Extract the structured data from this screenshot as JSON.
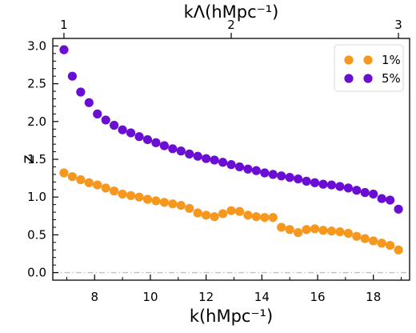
{
  "chart_data": {
    "type": "scatter",
    "xlabel": "k(hMpc⁻¹)",
    "ylabel": "z",
    "top_xlabel": "kΛ(hMpc⁻¹)",
    "xlim": [
      6.5,
      19.3
    ],
    "ylim": [
      -0.1,
      3.1
    ],
    "x_ticks": [
      8,
      10,
      12,
      14,
      16,
      18
    ],
    "y_ticks": [
      0.0,
      0.5,
      1.0,
      1.5,
      2.0,
      2.5,
      3.0
    ],
    "x_tick_labels": [
      "8",
      "10",
      "12",
      "14",
      "16",
      "18"
    ],
    "y_tick_labels": [
      "0.0",
      "0.5",
      "1.0",
      "1.5",
      "2.0",
      "2.5",
      "3.0"
    ],
    "top_ticks": [
      {
        "k": 6.9,
        "label": "1"
      },
      {
        "k": 12.9,
        "label": "2"
      },
      {
        "k": 18.9,
        "label": "3"
      }
    ],
    "reference_line": {
      "y": 0.0,
      "style": "dash-dot",
      "color": "#c0c0c0"
    },
    "legend": {
      "position": "top-right"
    },
    "grid": false,
    "x": [
      6.9,
      7.2,
      7.5,
      7.8,
      8.1,
      8.4,
      8.7,
      9.0,
      9.3,
      9.6,
      9.9,
      10.2,
      10.5,
      10.8,
      11.1,
      11.4,
      11.7,
      12.0,
      12.3,
      12.6,
      12.9,
      13.2,
      13.5,
      13.8,
      14.1,
      14.4,
      14.7,
      15.0,
      15.3,
      15.6,
      15.9,
      16.2,
      16.5,
      16.8,
      17.1,
      17.4,
      17.7,
      18.0,
      18.3,
      18.6,
      18.9
    ],
    "series": [
      {
        "name": "1%",
        "color": "#f7981e",
        "values": [
          1.32,
          1.27,
          1.23,
          1.19,
          1.16,
          1.12,
          1.08,
          1.04,
          1.02,
          1.0,
          0.97,
          0.95,
          0.93,
          0.91,
          0.89,
          0.85,
          0.79,
          0.76,
          0.74,
          0.78,
          0.82,
          0.81,
          0.76,
          0.74,
          0.73,
          0.73,
          0.6,
          0.57,
          0.53,
          0.57,
          0.58,
          0.56,
          0.55,
          0.54,
          0.52,
          0.48,
          0.45,
          0.42,
          0.39,
          0.36,
          0.3
        ]
      },
      {
        "name": "5%",
        "color": "#6a0ed3",
        "values": [
          2.95,
          2.6,
          2.39,
          2.25,
          2.1,
          2.02,
          1.95,
          1.89,
          1.85,
          1.8,
          1.76,
          1.72,
          1.68,
          1.64,
          1.61,
          1.57,
          1.54,
          1.51,
          1.49,
          1.46,
          1.43,
          1.4,
          1.37,
          1.35,
          1.32,
          1.3,
          1.28,
          1.26,
          1.24,
          1.21,
          1.19,
          1.17,
          1.16,
          1.14,
          1.12,
          1.09,
          1.06,
          1.04,
          0.98,
          0.96,
          0.84
        ]
      }
    ]
  }
}
